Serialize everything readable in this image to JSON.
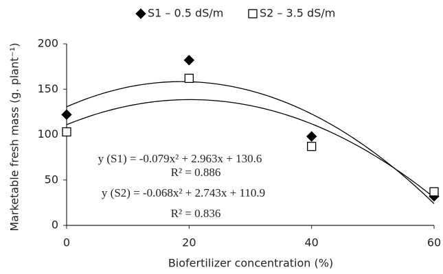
{
  "chart_data": {
    "type": "scatter",
    "x_label": "Biofertilizer concentration (%)",
    "y_label": "Marketable fresh mass (g. plant⁻¹)",
    "x": [
      0,
      20,
      40,
      60
    ],
    "series": [
      {
        "name": "S1 – 0.5 dS/m",
        "color": "#000000",
        "marker": "diamond",
        "values": [
          122,
          182,
          98,
          32
        ],
        "trend": [
          -0.079,
          2.963,
          130.6
        ]
      },
      {
        "name": "S2 – 3.5 dS/m",
        "color": "#ffffff",
        "marker": "square",
        "values": [
          103,
          162,
          87,
          37
        ],
        "trend": [
          -0.068,
          2.743,
          110.9
        ]
      }
    ],
    "annotations": [
      "y (S1)  = -0.079x² + 2.963x + 130.6",
      "R² = 0.886",
      "y (S2)  = -0.068x² + 2.743x + 110.9",
      "R² = 0.836"
    ],
    "xlim": [
      0,
      60
    ],
    "xticks": [
      0,
      20,
      40,
      60
    ],
    "ylim": [
      0,
      200
    ],
    "yticks": [
      0,
      50,
      100,
      150,
      200
    ],
    "grid": false,
    "legend": "top"
  }
}
